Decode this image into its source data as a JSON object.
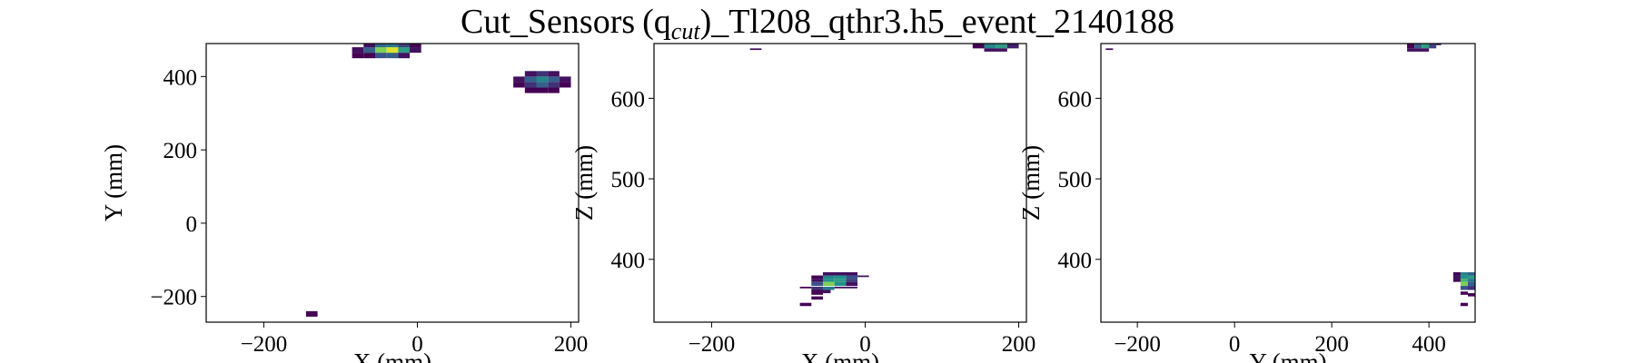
{
  "chart_data": {
    "title": "Cut_Sensors",
    "title_math": "(q",
    "title_sub": "cut",
    "title_close": ")",
    "title_rest": "_Tl208_qthr3.h5_event_2140188",
    "colormap": [
      "#440154",
      "#3b528b",
      "#21918c",
      "#5ec962",
      "#fde725"
    ],
    "panels": [
      {
        "type": "heatmap",
        "xlabel": "X (mm)",
        "ylabel": "Y (mm)",
        "xlim": [
          -275,
          210
        ],
        "ylim": [
          -270,
          490
        ],
        "xticks": [
          -200,
          0,
          200
        ],
        "xtick_labels": [
          "−200",
          "0",
          "200"
        ],
        "yticks": [
          -200,
          0,
          200,
          400
        ],
        "ytick_labels": [
          "−200",
          "0",
          "200",
          "400"
        ],
        "cells": [
          {
            "x0": -145,
            "x1": -130,
            "y0": -255,
            "y1": -240,
            "v": 0.0
          },
          {
            "x0": -85,
            "x1": -70,
            "y0": 450,
            "y1": 465,
            "v": 0.0
          },
          {
            "x0": -70,
            "x1": -55,
            "y0": 450,
            "y1": 465,
            "v": 0.0
          },
          {
            "x0": -55,
            "x1": -40,
            "y0": 450,
            "y1": 465,
            "v": 0.25
          },
          {
            "x0": -40,
            "x1": -25,
            "y0": 450,
            "y1": 465,
            "v": 0.3
          },
          {
            "x0": -25,
            "x1": -10,
            "y0": 450,
            "y1": 465,
            "v": 0.05
          },
          {
            "x0": -85,
            "x1": -70,
            "y0": 465,
            "y1": 480,
            "v": 0.05
          },
          {
            "x0": -70,
            "x1": -55,
            "y0": 465,
            "y1": 480,
            "v": 0.3
          },
          {
            "x0": -55,
            "x1": -40,
            "y0": 465,
            "y1": 480,
            "v": 0.8
          },
          {
            "x0": -40,
            "x1": -25,
            "y0": 465,
            "y1": 480,
            "v": 0.95
          },
          {
            "x0": -25,
            "x1": -10,
            "y0": 465,
            "y1": 480,
            "v": 0.55
          },
          {
            "x0": -10,
            "x1": 5,
            "y0": 465,
            "y1": 480,
            "v": 0.05
          },
          {
            "x0": -70,
            "x1": -55,
            "y0": 480,
            "y1": 490,
            "v": 0.05
          },
          {
            "x0": -55,
            "x1": -40,
            "y0": 480,
            "y1": 490,
            "v": 0.35
          },
          {
            "x0": -40,
            "x1": -25,
            "y0": 480,
            "y1": 490,
            "v": 0.4
          },
          {
            "x0": -25,
            "x1": -10,
            "y0": 480,
            "y1": 490,
            "v": 0.2
          },
          {
            "x0": -10,
            "x1": 5,
            "y0": 480,
            "y1": 490,
            "v": 0.0
          },
          {
            "x0": 140,
            "x1": 155,
            "y0": 355,
            "y1": 370,
            "v": 0.0
          },
          {
            "x0": 155,
            "x1": 170,
            "y0": 355,
            "y1": 370,
            "v": 0.0
          },
          {
            "x0": 170,
            "x1": 185,
            "y0": 355,
            "y1": 370,
            "v": 0.0
          },
          {
            "x0": 125,
            "x1": 140,
            "y0": 370,
            "y1": 385,
            "v": 0.0
          },
          {
            "x0": 140,
            "x1": 155,
            "y0": 370,
            "y1": 385,
            "v": 0.15
          },
          {
            "x0": 155,
            "x1": 170,
            "y0": 370,
            "y1": 385,
            "v": 0.3
          },
          {
            "x0": 170,
            "x1": 185,
            "y0": 370,
            "y1": 385,
            "v": 0.15
          },
          {
            "x0": 185,
            "x1": 200,
            "y0": 370,
            "y1": 385,
            "v": 0.0
          },
          {
            "x0": 125,
            "x1": 140,
            "y0": 385,
            "y1": 400,
            "v": 0.05
          },
          {
            "x0": 140,
            "x1": 155,
            "y0": 385,
            "y1": 400,
            "v": 0.3
          },
          {
            "x0": 155,
            "x1": 170,
            "y0": 385,
            "y1": 400,
            "v": 0.45
          },
          {
            "x0": 170,
            "x1": 185,
            "y0": 385,
            "y1": 400,
            "v": 0.3
          },
          {
            "x0": 185,
            "x1": 200,
            "y0": 385,
            "y1": 400,
            "v": 0.05
          },
          {
            "x0": 140,
            "x1": 155,
            "y0": 400,
            "y1": 415,
            "v": 0.05
          },
          {
            "x0": 155,
            "x1": 170,
            "y0": 400,
            "y1": 415,
            "v": 0.15
          },
          {
            "x0": 170,
            "x1": 185,
            "y0": 400,
            "y1": 415,
            "v": 0.05
          }
        ]
      },
      {
        "type": "heatmap",
        "xlabel": "X (mm)",
        "ylabel": "Z (mm)",
        "xlim": [
          -275,
          210
        ],
        "ylim": [
          322,
          668
        ],
        "xticks": [
          -200,
          0,
          200
        ],
        "xtick_labels": [
          "−200",
          "0",
          "200"
        ],
        "yticks": [
          400,
          500,
          600
        ],
        "ytick_labels": [
          "400",
          "500",
          "600"
        ],
        "cells": [
          {
            "x0": -150,
            "x1": -135,
            "y0": 660,
            "y1": 662,
            "v": 0.05
          },
          {
            "x0": 140,
            "x1": 155,
            "y0": 662,
            "y1": 668,
            "v": 0.0
          },
          {
            "x0": 155,
            "x1": 170,
            "y0": 662,
            "y1": 668,
            "v": 0.45
          },
          {
            "x0": 170,
            "x1": 185,
            "y0": 662,
            "y1": 668,
            "v": 0.55
          },
          {
            "x0": 185,
            "x1": 200,
            "y0": 662,
            "y1": 668,
            "v": 0.1
          },
          {
            "x0": 155,
            "x1": 185,
            "y0": 658,
            "y1": 662,
            "v": 0.05
          },
          {
            "x0": -55,
            "x1": -10,
            "y0": 380,
            "y1": 384,
            "v": 0.05
          },
          {
            "x0": -70,
            "x1": -55,
            "y0": 376,
            "y1": 380,
            "v": 0.0
          },
          {
            "x0": -55,
            "x1": -40,
            "y0": 376,
            "y1": 380,
            "v": 0.45
          },
          {
            "x0": -40,
            "x1": -25,
            "y0": 376,
            "y1": 380,
            "v": 0.5
          },
          {
            "x0": -25,
            "x1": -10,
            "y0": 376,
            "y1": 380,
            "v": 0.25
          },
          {
            "x0": -10,
            "x1": 5,
            "y0": 378,
            "y1": 380,
            "v": 0.05
          },
          {
            "x0": -70,
            "x1": -55,
            "y0": 372,
            "y1": 376,
            "v": 0.05
          },
          {
            "x0": -55,
            "x1": -40,
            "y0": 372,
            "y1": 376,
            "v": 0.5
          },
          {
            "x0": -40,
            "x1": -25,
            "y0": 372,
            "y1": 376,
            "v": 0.55
          },
          {
            "x0": -25,
            "x1": -10,
            "y0": 372,
            "y1": 376,
            "v": 0.2
          },
          {
            "x0": -70,
            "x1": -55,
            "y0": 367,
            "y1": 372,
            "v": 0.25
          },
          {
            "x0": -55,
            "x1": -40,
            "y0": 367,
            "y1": 372,
            "v": 0.8
          },
          {
            "x0": -40,
            "x1": -25,
            "y0": 367,
            "y1": 372,
            "v": 0.5
          },
          {
            "x0": -25,
            "x1": -10,
            "y0": 367,
            "y1": 372,
            "v": 0.05
          },
          {
            "x0": -85,
            "x1": -70,
            "y0": 364,
            "y1": 366,
            "v": 0.0
          },
          {
            "x0": -70,
            "x1": -55,
            "y0": 362,
            "y1": 366,
            "v": 0.15
          },
          {
            "x0": -55,
            "x1": -40,
            "y0": 362,
            "y1": 366,
            "v": 0.4
          },
          {
            "x0": -40,
            "x1": -10,
            "y0": 364,
            "y1": 366,
            "v": 0.05
          },
          {
            "x0": -70,
            "x1": -55,
            "y0": 356,
            "y1": 362,
            "v": 0.0
          },
          {
            "x0": -55,
            "x1": -45,
            "y0": 358,
            "y1": 362,
            "v": 0.05
          },
          {
            "x0": -70,
            "x1": -55,
            "y0": 350,
            "y1": 354,
            "v": 0.0
          },
          {
            "x0": -85,
            "x1": -70,
            "y0": 342,
            "y1": 346,
            "v": 0.0
          }
        ]
      },
      {
        "type": "heatmap",
        "xlabel": "Y (mm)",
        "ylabel": "Z (mm)",
        "xlim": [
          -275,
          495
        ],
        "ylim": [
          322,
          668
        ],
        "xticks": [
          -200,
          0,
          200,
          400
        ],
        "xtick_labels": [
          "−200",
          "0",
          "200",
          "400"
        ],
        "yticks": [
          400,
          500,
          600
        ],
        "ytick_labels": [
          "400",
          "500",
          "600"
        ],
        "cells": [
          {
            "x0": -265,
            "x1": -250,
            "y0": 660,
            "y1": 662,
            "v": 0.05
          },
          {
            "x0": 355,
            "x1": 370,
            "y0": 662,
            "y1": 668,
            "v": 0.0
          },
          {
            "x0": 370,
            "x1": 385,
            "y0": 662,
            "y1": 668,
            "v": 0.3
          },
          {
            "x0": 385,
            "x1": 400,
            "y0": 662,
            "y1": 668,
            "v": 0.55
          },
          {
            "x0": 400,
            "x1": 415,
            "y0": 662,
            "y1": 668,
            "v": 0.2
          },
          {
            "x0": 415,
            "x1": 425,
            "y0": 666,
            "y1": 668,
            "v": 0.05
          },
          {
            "x0": 355,
            "x1": 400,
            "y0": 658,
            "y1": 662,
            "v": 0.05
          },
          {
            "x0": 450,
            "x1": 465,
            "y0": 380,
            "y1": 384,
            "v": 0.0
          },
          {
            "x0": 465,
            "x1": 480,
            "y0": 380,
            "y1": 384,
            "v": 0.45
          },
          {
            "x0": 480,
            "x1": 495,
            "y0": 380,
            "y1": 384,
            "v": 0.3
          },
          {
            "x0": 450,
            "x1": 465,
            "y0": 376,
            "y1": 380,
            "v": 0.05
          },
          {
            "x0": 465,
            "x1": 480,
            "y0": 376,
            "y1": 380,
            "v": 0.5
          },
          {
            "x0": 480,
            "x1": 495,
            "y0": 376,
            "y1": 380,
            "v": 0.55
          },
          {
            "x0": 450,
            "x1": 465,
            "y0": 372,
            "y1": 376,
            "v": 0.0
          },
          {
            "x0": 465,
            "x1": 480,
            "y0": 372,
            "y1": 376,
            "v": 0.65
          },
          {
            "x0": 480,
            "x1": 495,
            "y0": 372,
            "y1": 376,
            "v": 0.4
          },
          {
            "x0": 465,
            "x1": 480,
            "y0": 367,
            "y1": 372,
            "v": 0.8
          },
          {
            "x0": 480,
            "x1": 495,
            "y0": 367,
            "y1": 372,
            "v": 0.3
          },
          {
            "x0": 465,
            "x1": 480,
            "y0": 362,
            "y1": 367,
            "v": 0.25
          },
          {
            "x0": 480,
            "x1": 495,
            "y0": 362,
            "y1": 367,
            "v": 0.15
          },
          {
            "x0": 465,
            "x1": 480,
            "y0": 356,
            "y1": 360,
            "v": 0.0
          },
          {
            "x0": 480,
            "x1": 495,
            "y0": 354,
            "y1": 358,
            "v": 0.0
          },
          {
            "x0": 465,
            "x1": 480,
            "y0": 342,
            "y1": 346,
            "v": 0.0
          }
        ]
      }
    ]
  }
}
